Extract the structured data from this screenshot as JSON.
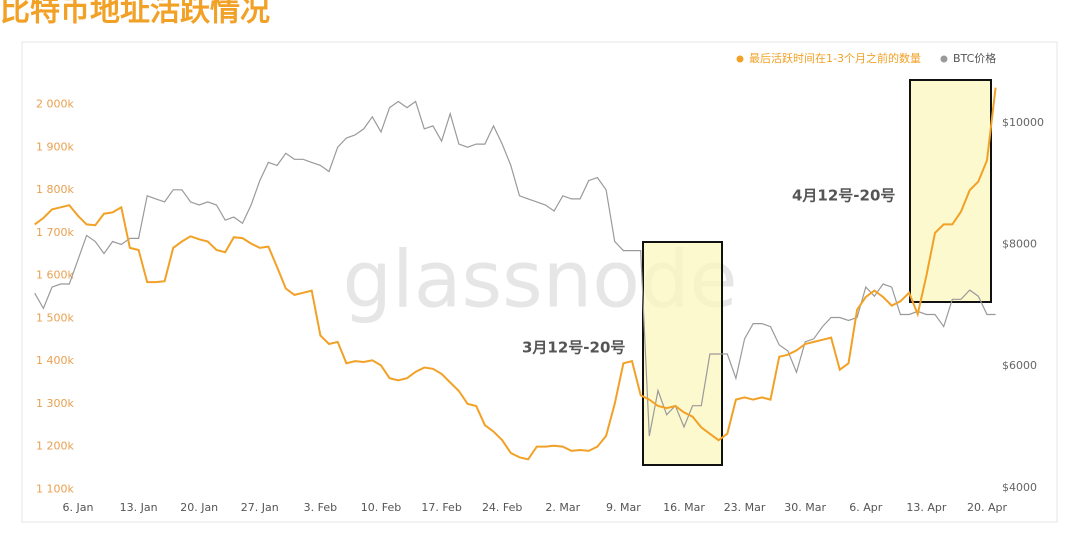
{
  "chart_data": {
    "type": "line",
    "title": "比特币地址活跃情况",
    "watermark": "glassnode",
    "categories": [
      null,
      null,
      null,
      null,
      null,
      "6. Jan",
      null,
      null,
      null,
      null,
      null,
      null,
      "13. Jan",
      null,
      null,
      null,
      null,
      null,
      null,
      "20. Jan",
      null,
      null,
      null,
      null,
      null,
      null,
      "27. Jan",
      null,
      null,
      null,
      null,
      null,
      null,
      "3. Feb",
      null,
      null,
      null,
      null,
      null,
      null,
      "10. Feb",
      null,
      null,
      null,
      null,
      null,
      null,
      "17. Feb",
      null,
      null,
      null,
      null,
      null,
      null,
      "24. Feb",
      null,
      null,
      null,
      null,
      null,
      null,
      "2. Mar",
      null,
      null,
      null,
      null,
      null,
      null,
      "9. Mar",
      null,
      null,
      null,
      null,
      null,
      null,
      "16. Mar",
      null,
      null,
      null,
      null,
      null,
      null,
      "23. Mar",
      null,
      null,
      null,
      null,
      null,
      null,
      "30. Mar",
      null,
      null,
      null,
      null,
      null,
      null,
      "6. Apr",
      null,
      null,
      null,
      null,
      null,
      null,
      "13. Apr",
      null,
      null,
      null,
      null,
      null,
      null,
      "20. Apr",
      null
    ],
    "series": [
      {
        "name": "最后活跃时间在1-3个月之前的数量",
        "color": "#f2a127",
        "axis": "y",
        "values": [
          1720000,
          1735000,
          1755000,
          1760000,
          1765000,
          1740000,
          1720000,
          1718000,
          1745000,
          1748000,
          1760000,
          1665000,
          1660000,
          1585000,
          1585000,
          1587000,
          1665000,
          1680000,
          1692000,
          1685000,
          1680000,
          1660000,
          1655000,
          1690000,
          1688000,
          1675000,
          1665000,
          1668000,
          1620000,
          1570000,
          1555000,
          1560000,
          1565000,
          1460000,
          1440000,
          1445000,
          1395000,
          1400000,
          1398000,
          1402000,
          1390000,
          1360000,
          1355000,
          1360000,
          1375000,
          1385000,
          1382000,
          1370000,
          1350000,
          1330000,
          1300000,
          1295000,
          1250000,
          1235000,
          1215000,
          1185000,
          1175000,
          1170000,
          1200000,
          1200000,
          1202000,
          1200000,
          1190000,
          1192000,
          1190000,
          1200000,
          1225000,
          1300000,
          1395000,
          1400000,
          1320000,
          1310000,
          1295000,
          1290000,
          1295000,
          1280000,
          1270000,
          1245000,
          1230000,
          1215000,
          1230000,
          1310000,
          1315000,
          1310000,
          1315000,
          1310000,
          1410000,
          1415000,
          1425000,
          1440000,
          1445000,
          1450000,
          1455000,
          1380000,
          1395000,
          1520000,
          1550000,
          1565000,
          1550000,
          1530000,
          1540000,
          1560000,
          1510000,
          1600000,
          1700000,
          1720000,
          1720000,
          1750000,
          1800000,
          1820000,
          1870000,
          2040000
        ]
      },
      {
        "name": "BTC价格",
        "color": "#9a9a9a",
        "axis": "y2",
        "values": [
          7200,
          6950,
          7300,
          7350,
          7350,
          7750,
          8150,
          8050,
          7850,
          8050,
          8000,
          8100,
          8100,
          8800,
          8750,
          8700,
          8900,
          8900,
          8700,
          8650,
          8700,
          8650,
          8400,
          8450,
          8350,
          8650,
          9050,
          9350,
          9300,
          9500,
          9400,
          9400,
          9350,
          9300,
          9200,
          9600,
          9750,
          9800,
          9900,
          10100,
          9850,
          10250,
          10350,
          10250,
          10350,
          9900,
          9950,
          9700,
          10150,
          9650,
          9600,
          9650,
          9650,
          9950,
          9650,
          9300,
          8800,
          8750,
          8700,
          8650,
          8550,
          8800,
          8750,
          8750,
          9050,
          9100,
          8900,
          8050,
          7900,
          7900,
          7900,
          4850,
          5600,
          5200,
          5350,
          5000,
          5350,
          5350,
          6200,
          6200,
          6200,
          5800,
          6450,
          6700,
          6700,
          6650,
          6350,
          6250,
          5900,
          6400,
          6450,
          6650,
          6800,
          6800,
          6750,
          6800,
          7300,
          7150,
          7350,
          7300,
          6850,
          6850,
          6900,
          6850,
          6850,
          6650,
          7100,
          7100,
          7250,
          7150,
          6850,
          6850
        ]
      }
    ],
    "ylim": [
      1075000,
      2100000
    ],
    "yticks": [
      {
        "value": 1100000,
        "label": "1 100k"
      },
      {
        "value": 1200000,
        "label": "1 200k"
      },
      {
        "value": 1300000,
        "label": "1 300k"
      },
      {
        "value": 1400000,
        "label": "1 400k"
      },
      {
        "value": 1500000,
        "label": "1 500k"
      },
      {
        "value": 1600000,
        "label": "1 600k"
      },
      {
        "value": 1700000,
        "label": "1 700k"
      },
      {
        "value": 1800000,
        "label": "1 800k"
      },
      {
        "value": 1900000,
        "label": "1 900k"
      },
      {
        "value": 2000000,
        "label": "2 000k"
      }
    ],
    "y2lim": [
      3800,
      11000
    ],
    "y2ticks": [
      {
        "value": 4000,
        "label": "$4000"
      },
      {
        "value": 6000,
        "label": "$6000"
      },
      {
        "value": 8000,
        "label": "$8000"
      },
      {
        "value": 10000,
        "label": "$10000"
      }
    ],
    "grid": false,
    "legend": "top-right",
    "annotations": [
      "3月12号-20号",
      "4月12号-20号"
    ]
  }
}
